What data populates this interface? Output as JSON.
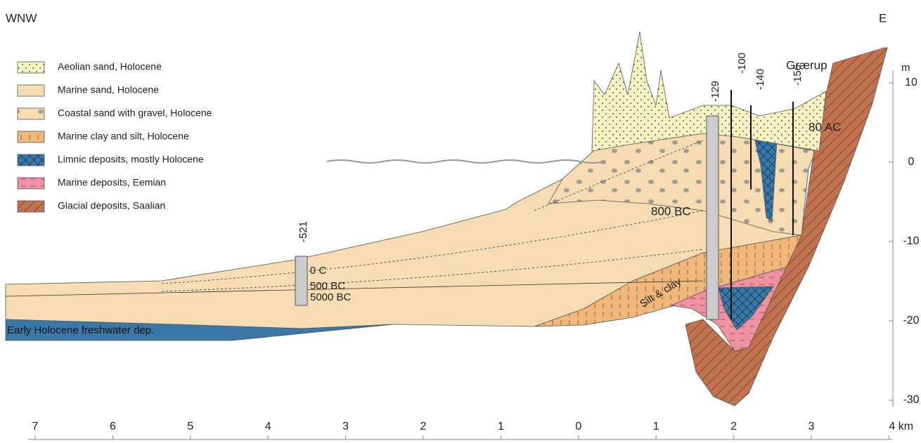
{
  "header": {
    "left": "WNW",
    "right": "E"
  },
  "place": "Grærup",
  "legend": {
    "items": [
      "Aeolian sand, Holocene",
      "Marine sand, Holocene",
      "Coastal sand with gravel, Holocene",
      "Marine clay and silt, Holocene",
      "Limnic deposits, mostly Holocene",
      "Marine deposits, Eemian",
      "Glacial deposits, Saalian"
    ]
  },
  "y_axis": {
    "unit": "m",
    "ticks": [
      "10",
      "0",
      "-10",
      "-20",
      "-30"
    ]
  },
  "x_axis": {
    "ticks": [
      "7",
      "6",
      "5",
      "4",
      "3",
      "2",
      "1",
      "0",
      "1",
      "2",
      "3",
      "4 km"
    ]
  },
  "boreholes": [
    "-521",
    "-129",
    "-100",
    "-140",
    "-156"
  ],
  "annotations": {
    "zero_c": "0 C",
    "bc500": "500 BC",
    "bc5000": "5000 BC",
    "bc800": "800 BC",
    "ac80": "80 AC",
    "silt": "Silt & clay",
    "early": "Early Holocene freshwater dep."
  }
}
